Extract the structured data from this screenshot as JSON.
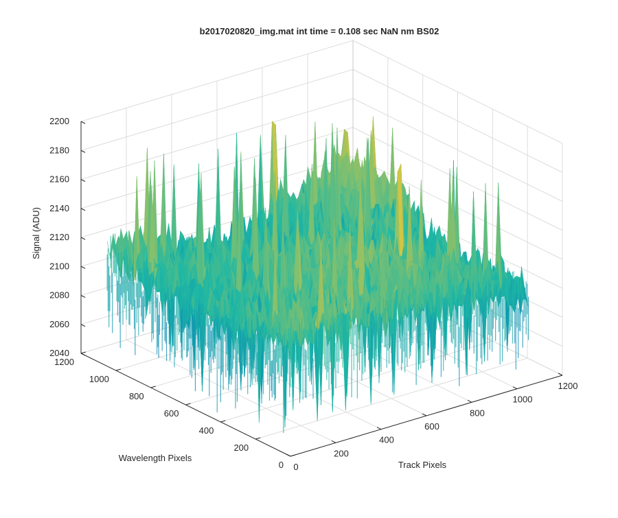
{
  "chart_data": {
    "type": "surface",
    "title": "b2017020820_img.mat int time = 0.108 sec  NaN nm BS02",
    "xlabel": "Track Pixels",
    "ylabel": "Wavelength Pixels",
    "zlabel": "Signal (ADU)",
    "xlim": [
      0,
      1200
    ],
    "ylim": [
      0,
      1200
    ],
    "zlim": [
      2040,
      2200
    ],
    "xticks": [
      "0",
      "200",
      "400",
      "600",
      "800",
      "1000",
      "1200"
    ],
    "yticks": [
      "0",
      "200",
      "400",
      "600",
      "800",
      "1000",
      "1200"
    ],
    "zticks": [
      "2040",
      "2060",
      "2080",
      "2100",
      "2120",
      "2140",
      "2160",
      "2180",
      "2200"
    ],
    "grid": true,
    "colormap": "parula",
    "colors": {
      "low": "#0072BD",
      "mid": "#1FB8A4",
      "high": "#F2C832"
    },
    "surface": {
      "x_range": [
        0,
        1050
      ],
      "y_range": [
        0,
        1050
      ],
      "mean_signal": 2115,
      "typical_range": [
        2060,
        2160
      ],
      "peak_signal": 2185,
      "edge_profile": [
        {
          "side": "left-edge-at-track-0",
          "top": 2135,
          "bottom": 2085
        },
        {
          "side": "right-edge-at-wavelength-0",
          "top": 2118,
          "bottom": 2075
        }
      ]
    }
  }
}
